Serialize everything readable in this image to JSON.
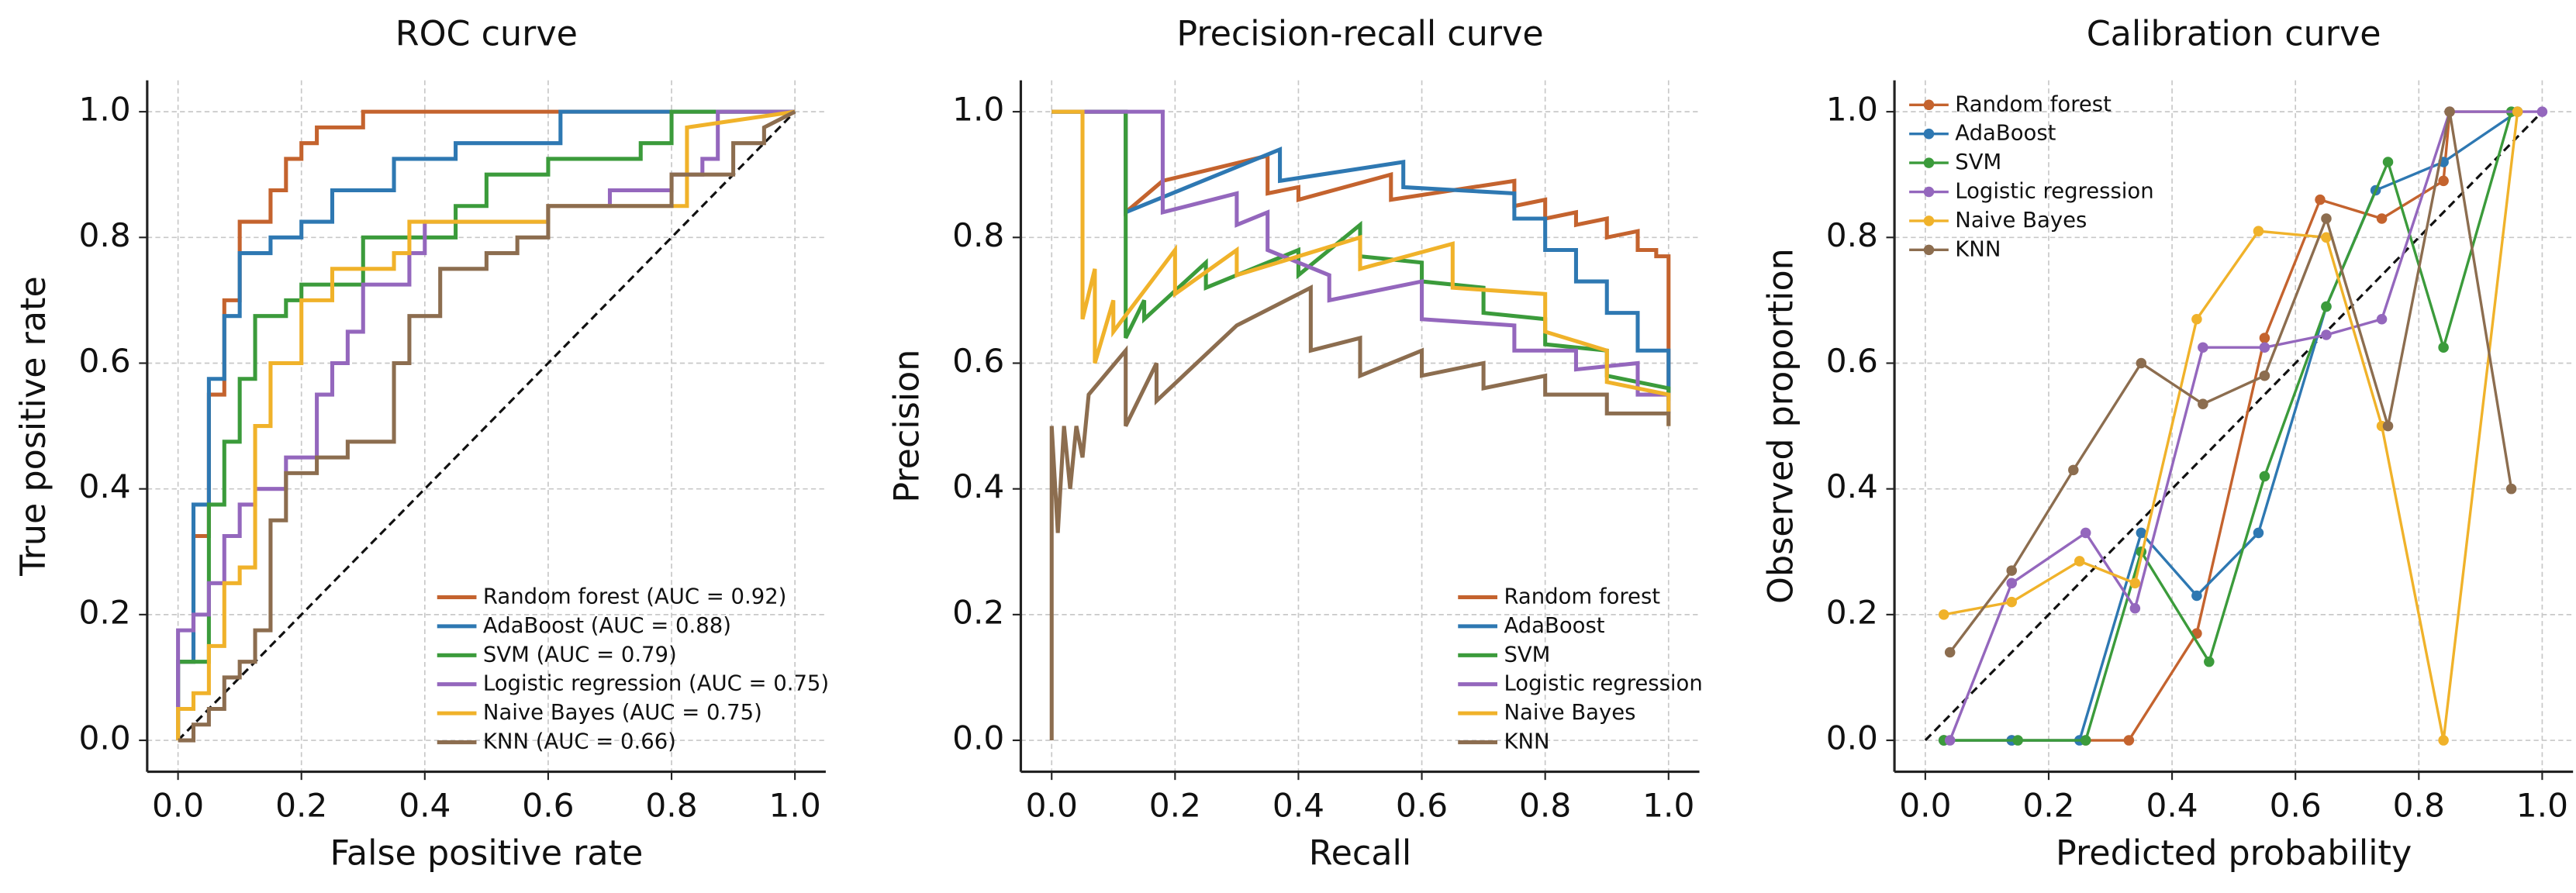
{
  "chart_data": [
    {
      "type": "line",
      "title": "ROC curve",
      "xlabel": "False positive rate",
      "ylabel": "True positive rate",
      "xlim": [
        -0.05,
        1.05
      ],
      "ylim": [
        -0.05,
        1.05
      ],
      "xticks": [
        {
          "value": 0,
          "label": "0.0"
        },
        0.2,
        0.4,
        0.6,
        0.8,
        {
          "value": 1,
          "label": "1.0"
        }
      ],
      "yticks": [
        {
          "value": 0,
          "label": "0.0"
        },
        0.2,
        0.4,
        0.6,
        0.8,
        {
          "value": 1,
          "label": "1.0"
        }
      ],
      "grid": true,
      "legend_loc": "lower right",
      "reference_line": true,
      "markers": false,
      "series": [
        {
          "name": "Random forest (AUC = 0.92)",
          "color": "#c4632e",
          "x": [
            0,
            0,
            0.025,
            0.025,
            0.05,
            0.05,
            0.075,
            0.075,
            0.1,
            0.1,
            0.15,
            0.15,
            0.175,
            0.175,
            0.2,
            0.2,
            0.225,
            0.225,
            0.3,
            0.3,
            1
          ],
          "values": [
            0,
            0.125,
            0.125,
            0.325,
            0.325,
            0.55,
            0.55,
            0.7,
            0.7,
            0.825,
            0.825,
            0.875,
            0.875,
            0.925,
            0.925,
            0.95,
            0.95,
            0.975,
            0.975,
            1,
            1
          ]
        },
        {
          "name": "AdaBoost (AUC = 0.88)",
          "color": "#2e78b2",
          "x": [
            0,
            0,
            0.025,
            0.025,
            0.05,
            0.05,
            0.075,
            0.075,
            0.1,
            0.1,
            0.15,
            0.15,
            0.2,
            0.2,
            0.25,
            0.25,
            0.35,
            0.35,
            0.45,
            0.45,
            0.62,
            0.62,
            1
          ],
          "values": [
            0,
            0.125,
            0.125,
            0.375,
            0.375,
            0.575,
            0.575,
            0.675,
            0.675,
            0.775,
            0.775,
            0.8,
            0.8,
            0.825,
            0.825,
            0.875,
            0.875,
            0.925,
            0.925,
            0.95,
            0.95,
            1,
            1
          ]
        },
        {
          "name": "SVM (AUC = 0.79)",
          "color": "#3b9b3b",
          "x": [
            0,
            0,
            0.05,
            0.05,
            0.075,
            0.075,
            0.1,
            0.1,
            0.125,
            0.125,
            0.175,
            0.175,
            0.2,
            0.2,
            0.3,
            0.3,
            0.45,
            0.45,
            0.5,
            0.5,
            0.6,
            0.6,
            0.75,
            0.75,
            0.8,
            0.8,
            1
          ],
          "values": [
            0,
            0.125,
            0.125,
            0.375,
            0.375,
            0.475,
            0.475,
            0.575,
            0.575,
            0.675,
            0.675,
            0.7,
            0.7,
            0.725,
            0.725,
            0.8,
            0.8,
            0.85,
            0.85,
            0.9,
            0.9,
            0.925,
            0.925,
            0.95,
            0.95,
            1,
            1
          ]
        },
        {
          "name": "Logistic regression (AUC = 0.75)",
          "color": "#9467bd",
          "x": [
            0,
            0,
            0.025,
            0.025,
            0.05,
            0.05,
            0.075,
            0.075,
            0.1,
            0.1,
            0.125,
            0.125,
            0.175,
            0.175,
            0.225,
            0.225,
            0.25,
            0.25,
            0.275,
            0.275,
            0.3,
            0.3,
            0.375,
            0.375,
            0.4,
            0.4,
            0.6,
            0.6,
            0.7,
            0.7,
            0.8,
            0.8,
            0.85,
            0.85,
            0.875,
            0.875,
            1
          ],
          "values": [
            0,
            0.175,
            0.175,
            0.2,
            0.2,
            0.25,
            0.25,
            0.325,
            0.325,
            0.375,
            0.375,
            0.4,
            0.4,
            0.45,
            0.45,
            0.55,
            0.55,
            0.6,
            0.6,
            0.65,
            0.65,
            0.725,
            0.725,
            0.775,
            0.775,
            0.825,
            0.825,
            0.85,
            0.85,
            0.875,
            0.875,
            0.9,
            0.9,
            0.925,
            0.925,
            1,
            1
          ]
        },
        {
          "name": "Naive Bayes (AUC = 0.75)",
          "color": "#f0b22a",
          "x": [
            0,
            0,
            0.025,
            0.025,
            0.05,
            0.05,
            0.075,
            0.075,
            0.1,
            0.1,
            0.125,
            0.125,
            0.15,
            0.15,
            0.2,
            0.2,
            0.25,
            0.25,
            0.35,
            0.35,
            0.375,
            0.375,
            0.6,
            0.6,
            0.825,
            0.825,
            1
          ],
          "values": [
            0,
            0.05,
            0.05,
            0.075,
            0.075,
            0.15,
            0.15,
            0.25,
            0.25,
            0.275,
            0.275,
            0.5,
            0.5,
            0.6,
            0.6,
            0.7,
            0.7,
            0.75,
            0.75,
            0.775,
            0.775,
            0.825,
            0.825,
            0.85,
            0.85,
            0.975,
            1
          ]
        },
        {
          "name": "KNN (AUC = 0.66)",
          "color": "#8c6d4f",
          "x": [
            0,
            0.025,
            0.025,
            0.05,
            0.05,
            0.075,
            0.075,
            0.1,
            0.1,
            0.125,
            0.125,
            0.15,
            0.15,
            0.175,
            0.175,
            0.225,
            0.225,
            0.275,
            0.275,
            0.35,
            0.35,
            0.375,
            0.375,
            0.425,
            0.425,
            0.5,
            0.5,
            0.55,
            0.55,
            0.6,
            0.6,
            0.8,
            0.8,
            0.9,
            0.9,
            0.95,
            0.95,
            1
          ],
          "values": [
            0,
            0,
            0.025,
            0.025,
            0.05,
            0.05,
            0.1,
            0.1,
            0.125,
            0.125,
            0.175,
            0.175,
            0.35,
            0.35,
            0.425,
            0.425,
            0.45,
            0.45,
            0.475,
            0.475,
            0.6,
            0.6,
            0.675,
            0.675,
            0.75,
            0.75,
            0.775,
            0.775,
            0.8,
            0.8,
            0.85,
            0.85,
            0.9,
            0.9,
            0.95,
            0.95,
            0.975,
            1
          ]
        }
      ]
    },
    {
      "type": "line",
      "title": "Precision-recall curve",
      "xlabel": "Recall",
      "ylabel": "Precision",
      "xlim": [
        -0.05,
        1.05
      ],
      "ylim": [
        -0.05,
        1.05
      ],
      "xticks": [
        {
          "value": 0,
          "label": "0.0"
        },
        0.2,
        0.4,
        0.6,
        0.8,
        {
          "value": 1,
          "label": "1.0"
        }
      ],
      "yticks": [
        {
          "value": 0,
          "label": "0.0"
        },
        0.2,
        0.4,
        0.6,
        0.8,
        {
          "value": 1,
          "label": "1.0"
        }
      ],
      "grid": true,
      "legend_loc": "lower right",
      "reference_line": false,
      "markers": false,
      "series": [
        {
          "name": "Random forest",
          "color": "#c4632e",
          "x": [
            0,
            0.12,
            0.12,
            0.18,
            0.35,
            0.35,
            0.4,
            0.4,
            0.55,
            0.55,
            0.75,
            0.75,
            0.8,
            0.8,
            0.85,
            0.85,
            0.9,
            0.9,
            0.95,
            0.95,
            0.98,
            0.98,
            1,
            1
          ],
          "values": [
            1,
            1,
            0.84,
            0.89,
            0.93,
            0.87,
            0.88,
            0.86,
            0.9,
            0.86,
            0.89,
            0.85,
            0.86,
            0.83,
            0.84,
            0.82,
            0.83,
            0.8,
            0.81,
            0.78,
            0.78,
            0.77,
            0.77,
            0.55
          ]
        },
        {
          "name": "AdaBoost",
          "color": "#2e78b2",
          "x": [
            0,
            0.12,
            0.12,
            0.37,
            0.37,
            0.57,
            0.57,
            0.75,
            0.75,
            0.8,
            0.8,
            0.85,
            0.85,
            0.9,
            0.9,
            0.95,
            0.95,
            1,
            1
          ],
          "values": [
            1,
            1,
            0.84,
            0.94,
            0.89,
            0.92,
            0.88,
            0.87,
            0.83,
            0.83,
            0.78,
            0.78,
            0.73,
            0.73,
            0.68,
            0.68,
            0.62,
            0.62,
            0.52
          ]
        },
        {
          "name": "SVM",
          "color": "#3b9b3b",
          "x": [
            0,
            0.12,
            0.12,
            0.15,
            0.15,
            0.25,
            0.25,
            0.4,
            0.4,
            0.5,
            0.5,
            0.6,
            0.6,
            0.7,
            0.7,
            0.8,
            0.8,
            0.9,
            0.9,
            1,
            1
          ],
          "values": [
            1,
            1,
            0.64,
            0.7,
            0.67,
            0.76,
            0.72,
            0.78,
            0.74,
            0.82,
            0.77,
            0.76,
            0.73,
            0.72,
            0.68,
            0.67,
            0.63,
            0.62,
            0.58,
            0.56,
            0.54
          ]
        },
        {
          "name": "Logistic regression",
          "color": "#9467bd",
          "x": [
            0,
            0.18,
            0.18,
            0.3,
            0.3,
            0.35,
            0.35,
            0.45,
            0.45,
            0.6,
            0.6,
            0.75,
            0.75,
            0.85,
            0.85,
            0.95,
            0.95,
            1,
            1
          ],
          "values": [
            1,
            1,
            0.84,
            0.87,
            0.82,
            0.84,
            0.78,
            0.74,
            0.7,
            0.73,
            0.67,
            0.66,
            0.62,
            0.62,
            0.59,
            0.6,
            0.55,
            0.55,
            0.52
          ]
        },
        {
          "name": "Naive Bayes",
          "color": "#f0b22a",
          "x": [
            0,
            0.05,
            0.05,
            0.07,
            0.07,
            0.1,
            0.1,
            0.2,
            0.2,
            0.3,
            0.3,
            0.5,
            0.5,
            0.65,
            0.65,
            0.8,
            0.8,
            0.9,
            0.9,
            1,
            1
          ],
          "values": [
            1,
            1,
            0.67,
            0.75,
            0.6,
            0.7,
            0.65,
            0.78,
            0.71,
            0.78,
            0.74,
            0.8,
            0.75,
            0.79,
            0.72,
            0.71,
            0.65,
            0.62,
            0.57,
            0.55,
            0.5
          ]
        },
        {
          "name": "KNN",
          "color": "#8c6d4f",
          "x": [
            0,
            0,
            0.01,
            0.02,
            0.03,
            0.04,
            0.05,
            0.06,
            0.12,
            0.12,
            0.17,
            0.17,
            0.3,
            0.42,
            0.42,
            0.5,
            0.5,
            0.6,
            0.6,
            0.7,
            0.7,
            0.8,
            0.8,
            0.9,
            0.9,
            1,
            1
          ],
          "values": [
            0,
            0.5,
            0.33,
            0.5,
            0.4,
            0.5,
            0.45,
            0.55,
            0.62,
            0.5,
            0.6,
            0.54,
            0.66,
            0.72,
            0.62,
            0.64,
            0.58,
            0.62,
            0.58,
            0.6,
            0.56,
            0.58,
            0.55,
            0.55,
            0.52,
            0.52,
            0.5
          ]
        }
      ]
    },
    {
      "type": "line",
      "title": "Calibration curve",
      "xlabel": "Predicted probability",
      "ylabel": "Observed proportion",
      "xlim": [
        -0.05,
        1.05
      ],
      "ylim": [
        -0.05,
        1.05
      ],
      "xticks": [
        {
          "value": 0,
          "label": "0.0"
        },
        0.2,
        0.4,
        0.6,
        0.8,
        {
          "value": 1,
          "label": "1.0"
        }
      ],
      "yticks": [
        {
          "value": 0,
          "label": "0.0"
        },
        0.2,
        0.4,
        0.6,
        0.8,
        {
          "value": 1,
          "label": "1.0"
        }
      ],
      "grid": true,
      "legend_loc": "upper left",
      "reference_line": true,
      "markers": true,
      "series": [
        {
          "name": "Random forest",
          "color": "#c4632e",
          "x": [
            0.03,
            0.14,
            0.26,
            0.33,
            0.44,
            0.55,
            0.64,
            0.74,
            0.84,
            0.85,
            0.96
          ],
          "values": [
            0,
            0,
            0,
            0,
            0.17,
            0.64,
            0.86,
            0.83,
            0.89,
            1,
            1
          ]
        },
        {
          "name": "AdaBoost",
          "color": "#2e78b2",
          "x": [
            0.03,
            0.14,
            0.25,
            0.35,
            0.44,
            0.54,
            0.65,
            0.73,
            0.84,
            0.96
          ],
          "values": [
            0,
            0,
            0,
            0.33,
            0.23,
            0.33,
            0.69,
            0.875,
            0.92,
            1
          ]
        },
        {
          "name": "SVM",
          "color": "#3b9b3b",
          "x": [
            0.03,
            0.15,
            0.26,
            0.35,
            0.46,
            0.55,
            0.65,
            0.75,
            0.84,
            0.95
          ],
          "values": [
            0,
            0,
            0,
            0.3,
            0.125,
            0.42,
            0.69,
            0.92,
            0.625,
            1
          ]
        },
        {
          "name": "Logistic regression",
          "color": "#9467bd",
          "x": [
            0.04,
            0.14,
            0.26,
            0.34,
            0.45,
            0.55,
            0.65,
            0.74,
            0.85,
            1
          ],
          "values": [
            0,
            0.25,
            0.33,
            0.21,
            0.625,
            0.625,
            0.645,
            0.67,
            1,
            1
          ]
        },
        {
          "name": "Naive Bayes",
          "color": "#f0b22a",
          "x": [
            0.03,
            0.14,
            0.25,
            0.34,
            0.44,
            0.54,
            0.65,
            0.74,
            0.84,
            0.96
          ],
          "values": [
            0.2,
            0.22,
            0.285,
            0.25,
            0.67,
            0.81,
            0.8,
            0.5,
            0,
            1
          ]
        },
        {
          "name": "KNN",
          "color": "#8c6d4f",
          "x": [
            0.04,
            0.14,
            0.24,
            0.35,
            0.45,
            0.55,
            0.65,
            0.75,
            0.85,
            0.95
          ],
          "values": [
            0.14,
            0.27,
            0.43,
            0.6,
            0.535,
            0.58,
            0.83,
            0.5,
            1,
            0.4
          ]
        }
      ]
    }
  ]
}
